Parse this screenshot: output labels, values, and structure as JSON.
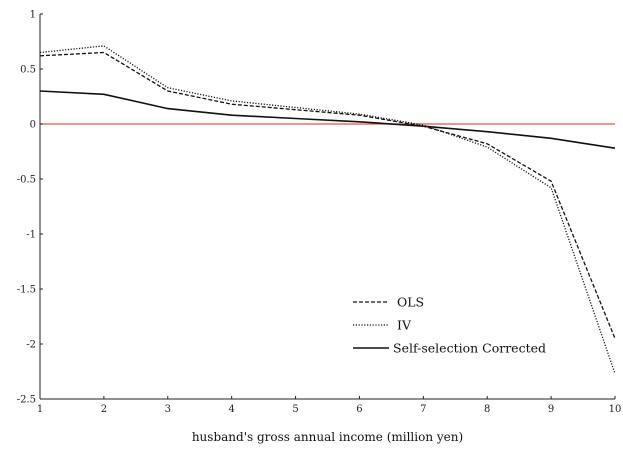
{
  "chart_data": {
    "type": "line",
    "title": "",
    "xlabel": "husband's gross annual income (million yen)",
    "ylabel": "",
    "x": [
      1,
      2,
      3,
      4,
      5,
      6,
      7,
      8,
      9,
      10
    ],
    "xlim": [
      1,
      10
    ],
    "ylim": [
      -2.5,
      1
    ],
    "xticks": [
      1,
      2,
      3,
      4,
      5,
      6,
      7,
      8,
      9,
      10
    ],
    "xtick_labels": [
      "1",
      "2",
      "3",
      "4",
      "5",
      "6",
      "7",
      "8",
      "9",
      "10"
    ],
    "yticks": [
      1,
      0.5,
      0,
      -0.5,
      -1,
      -1.5,
      -2,
      -2.5
    ],
    "ytick_labels": [
      "1",
      "0.5",
      "0",
      "-0.5",
      "-1",
      "-1.5",
      "-2",
      "-2.5"
    ],
    "grid": false,
    "legend_position": "lower-center",
    "reference_line": {
      "y": 0,
      "color": "#e8553a"
    },
    "series": [
      {
        "name": "OLS",
        "style": "dashed",
        "color": "#111111",
        "values": [
          0.62,
          0.65,
          0.3,
          0.18,
          0.13,
          0.08,
          -0.02,
          -0.18,
          -0.52,
          -1.95
        ]
      },
      {
        "name": "IV",
        "style": "dotted",
        "color": "#111111",
        "values": [
          0.65,
          0.71,
          0.33,
          0.21,
          0.15,
          0.09,
          -0.01,
          -0.21,
          -0.58,
          -2.27
        ]
      },
      {
        "name": "Self-selection Corrected",
        "style": "solid",
        "color": "#111111",
        "values": [
          0.3,
          0.27,
          0.14,
          0.08,
          0.05,
          0.02,
          -0.02,
          -0.07,
          -0.13,
          -0.22
        ]
      }
    ]
  }
}
